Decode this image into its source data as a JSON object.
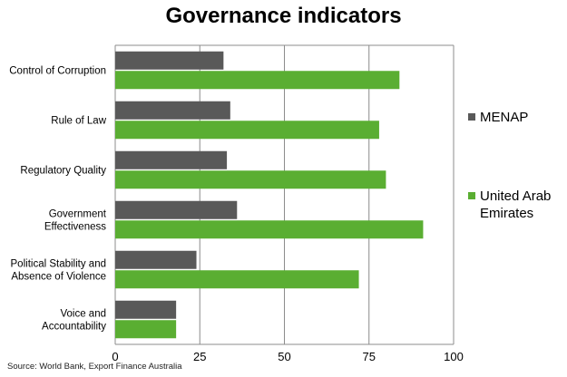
{
  "title": "Governance indicators",
  "source": "Source: World Bank, Export Finance Australia",
  "chart_data": {
    "type": "bar",
    "orientation": "horizontal",
    "title": "Governance indicators",
    "categories": [
      "Control of Corruption",
      "Rule of Law",
      "Regulatory Quality",
      "Government Effectiveness",
      "Political Stability and Absence of Violence",
      "Voice and Accountability"
    ],
    "category_lines": [
      [
        "Control of Corruption"
      ],
      [
        "Rule of Law"
      ],
      [
        "Regulatory Quality"
      ],
      [
        "Government",
        "Effectiveness"
      ],
      [
        "Political Stability and",
        "Absence of Violence"
      ],
      [
        "Voice and",
        "Accountability"
      ]
    ],
    "series": [
      {
        "name": "MENAP",
        "color": "#595959",
        "values": [
          32,
          34,
          33,
          36,
          24,
          18
        ]
      },
      {
        "name": "United Arab Emirates",
        "color": "#5aae32",
        "values": [
          84,
          78,
          80,
          91,
          72,
          18
        ]
      }
    ],
    "legend_lines": [
      [
        "MENAP"
      ],
      [
        "United Arab",
        "Emirates"
      ]
    ],
    "xlim": [
      0,
      100
    ],
    "xticks": [
      0,
      25,
      50,
      75,
      100
    ],
    "grid": true,
    "legend_position": "right"
  }
}
